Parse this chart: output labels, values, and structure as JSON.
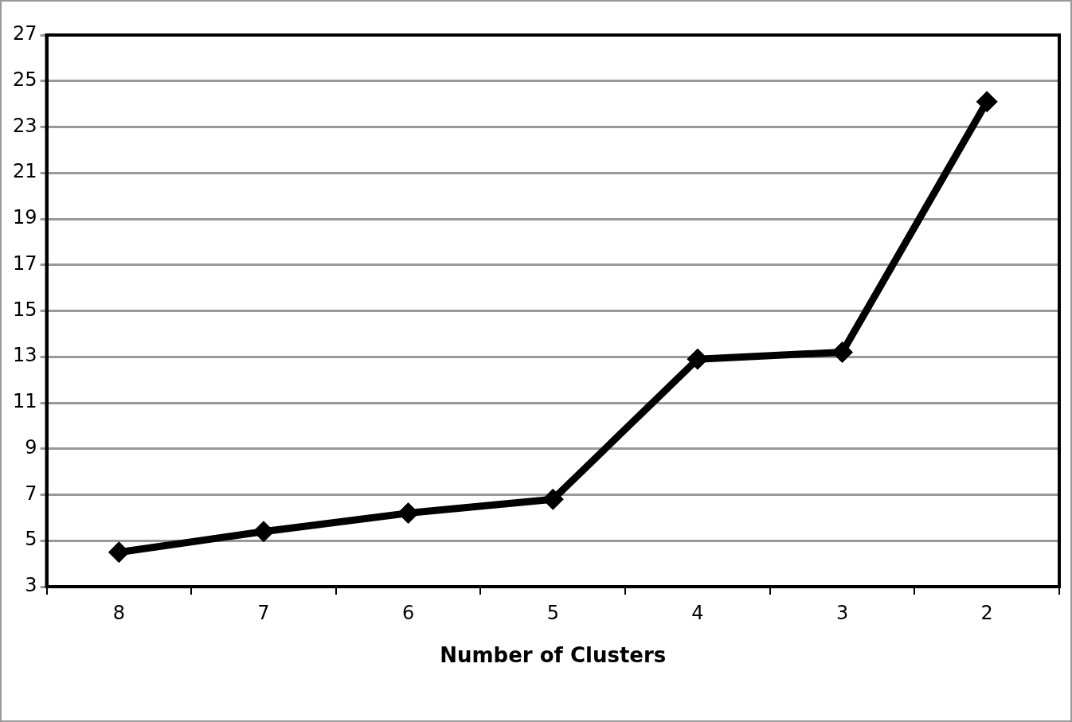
{
  "chart_data": {
    "type": "line",
    "xlabel": "Number of Clusters",
    "categories": [
      "8",
      "7",
      "6",
      "5",
      "4",
      "3",
      "2"
    ],
    "series": [
      {
        "color": "#000000",
        "values": [
          4.5,
          5.4,
          6.2,
          6.8,
          12.9,
          13.2,
          24.1
        ]
      }
    ],
    "ylim": [
      3,
      27
    ],
    "yticks": [
      3,
      5,
      7,
      9,
      11,
      13,
      15,
      17,
      19,
      21,
      23,
      25,
      27
    ],
    "grid": "y",
    "legend": false,
    "marker": "diamond",
    "line_style": "solid"
  }
}
